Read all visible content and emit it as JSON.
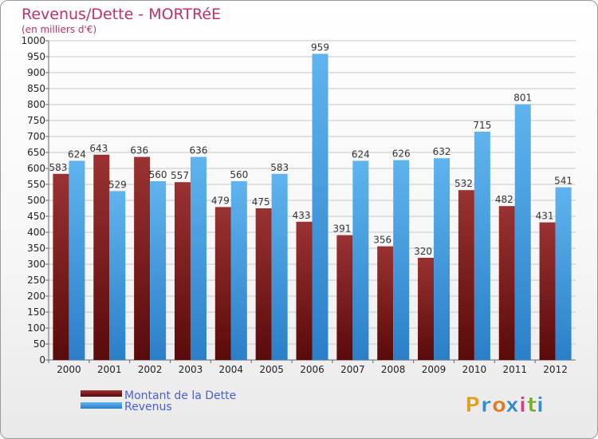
{
  "chart_data": {
    "type": "bar",
    "title": "Revenus/Dette - MORTRéE",
    "subtitle": "(en milliers d'€)",
    "categories": [
      "2000",
      "2001",
      "2002",
      "2003",
      "2004",
      "2005",
      "2006",
      "2007",
      "2008",
      "2009",
      "2010",
      "2011",
      "2012"
    ],
    "series": [
      {
        "name": "Montant de la Dette",
        "color": "#7a1a1a",
        "values": [
          583,
          643,
          636,
          557,
          479,
          475,
          433,
          391,
          356,
          320,
          532,
          482,
          431
        ]
      },
      {
        "name": "Revenus",
        "color": "#3d9be0",
        "values": [
          624,
          529,
          560,
          636,
          560,
          583,
          959,
          624,
          626,
          632,
          715,
          801,
          541
        ]
      }
    ],
    "ylim": [
      0,
      1000
    ],
    "ytick_step": 50,
    "grid": true,
    "legend": "bottom-left"
  },
  "branding": {
    "logo_letters": [
      "P",
      "r",
      "o",
      "x",
      "i",
      "t",
      "i"
    ],
    "logo_colors": [
      "#e0a020",
      "#3a8ad0",
      "#e07a20",
      "#3a8ad0",
      "#d04080",
      "#7ab030",
      "#3a8ad0"
    ]
  }
}
